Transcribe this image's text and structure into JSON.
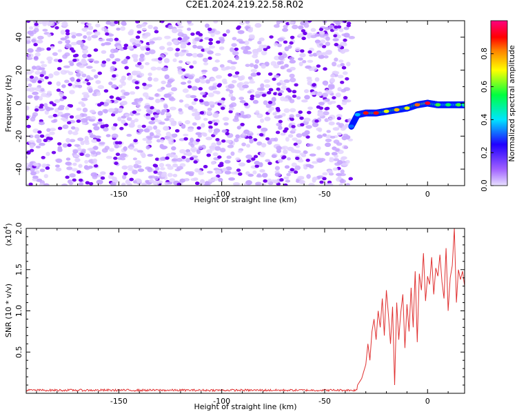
{
  "figure": {
    "title": "C2E1.2024.219.22.58.R02"
  },
  "chart_data": [
    {
      "type": "heatmap",
      "title": "C2E1.2024.219.22.58.R02",
      "xlabel": "Height of straight line (km)",
      "ylabel": "Frequency (Hz)",
      "xlim": [
        -195,
        18
      ],
      "ylim": [
        -50,
        50
      ],
      "xticks": [
        -150,
        -100,
        -50,
        0
      ],
      "yticks": [
        -40,
        -20,
        0,
        20,
        40
      ],
      "grid": false,
      "colorbar": {
        "label": "Normalized spectral amplitude",
        "range": [
          0.0,
          1.0
        ],
        "ticks": [
          "0.0",
          "0.2",
          "0.4",
          "0.6",
          "0.8"
        ],
        "colormap": [
          "#e8e0ff",
          "#7a00ff",
          "#0000ff",
          "#00e5ff",
          "#00ff40",
          "#ffff00",
          "#ff0000",
          "#ff0080"
        ]
      },
      "noise_region": {
        "x_from": -195,
        "x_to": -38,
        "amplitude_range": [
          0.0,
          0.15
        ]
      },
      "signal_track": {
        "x": [
          -37,
          -34,
          -30,
          -25,
          -20,
          -15,
          -10,
          -5,
          0,
          5,
          10,
          15,
          18
        ],
        "y": [
          -14,
          -7,
          -6,
          -6,
          -5,
          -4,
          -3,
          -1,
          0,
          -1,
          -1,
          -1,
          -1
        ],
        "amplitude": [
          0.35,
          0.4,
          0.85,
          0.85,
          0.7,
          0.75,
          0.7,
          0.8,
          0.9,
          0.6,
          0.55,
          0.6,
          0.5
        ]
      }
    },
    {
      "type": "line",
      "xlabel": "Height of straight line (km)",
      "ylabel": "SNR (10 * v/v)",
      "y_multiplier": "(x10",
      "y_multiplier_exp": "4",
      "y_multiplier_close": ")",
      "xlim": [
        -195,
        18
      ],
      "ylim": [
        0,
        20000
      ],
      "xticks": [
        -150,
        -100,
        -50,
        0
      ],
      "ytick_labels": [
        "0.5",
        "1.0",
        "1.5",
        "2.0"
      ],
      "yticks": [
        5000,
        10000,
        15000,
        20000
      ],
      "grid": false,
      "color": "#e03030",
      "series": [
        {
          "x": [
            -195,
            -40,
            -35,
            -32,
            -30,
            -29,
            -28,
            -27,
            -26,
            -25,
            -24,
            -23,
            -22,
            -21,
            -20,
            -19,
            -18,
            -17,
            -16,
            -15,
            -14,
            -13,
            -12,
            -11,
            -10,
            -9,
            -8,
            -7,
            -6,
            -5,
            -4,
            -3,
            -2,
            -1,
            0,
            1,
            2,
            3,
            4,
            5,
            6,
            7,
            8,
            9,
            10,
            11,
            12,
            13,
            14,
            15,
            16,
            17,
            18
          ],
          "y": [
            300,
            300,
            600,
            1800,
            3500,
            6000,
            4000,
            7500,
            9000,
            6500,
            10000,
            8000,
            11500,
            7000,
            12500,
            9500,
            6000,
            10500,
            1000,
            11000,
            6500,
            9800,
            12000,
            5500,
            10800,
            7500,
            12800,
            8000,
            14800,
            6200,
            14500,
            12500,
            17000,
            11200,
            14200,
            13200,
            16500,
            12000,
            15200,
            14200,
            16800,
            13500,
            11500,
            17600,
            10000,
            14000,
            15500,
            20000,
            11000,
            15000,
            13800,
            14800,
            13000
          ]
        }
      ]
    }
  ]
}
